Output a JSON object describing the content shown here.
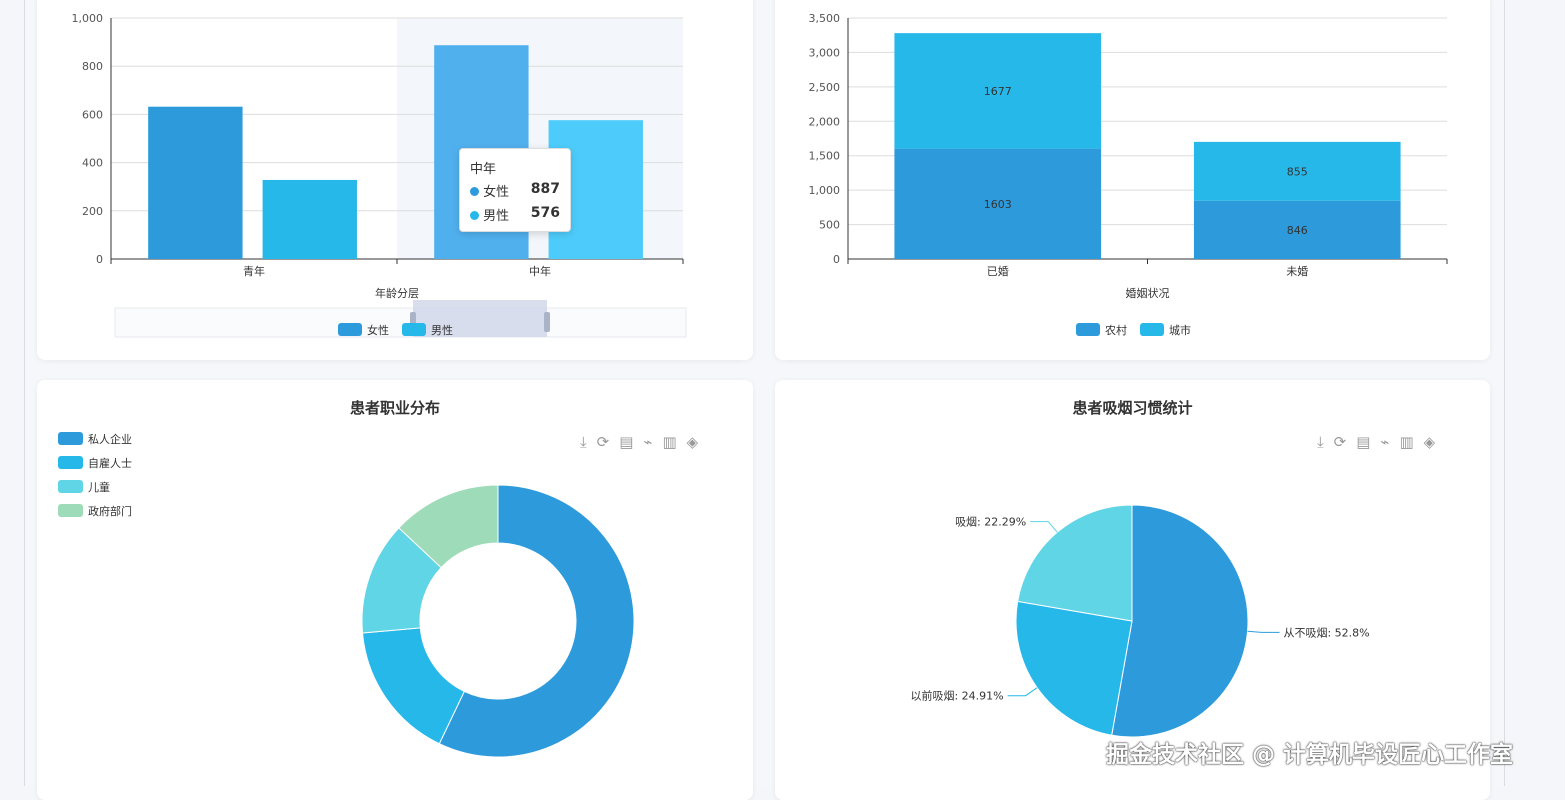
{
  "chart_data": [
    {
      "type": "bar",
      "xlabel": "年龄分层",
      "categories": [
        "青年",
        "中年"
      ],
      "ylim": [
        0,
        1000
      ],
      "yticks": [
        0,
        200,
        400,
        600,
        800,
        1000
      ],
      "grid": true,
      "legend_placement": "bottom",
      "series": [
        {
          "name": "女性",
          "values": [
            632,
            887
          ],
          "color": "#2d9bdb"
        },
        {
          "name": "男性",
          "values": [
            328,
            576
          ],
          "color": "#27b8ea"
        }
      ],
      "tooltip": {
        "title": "中年",
        "items": [
          {
            "name": "女性",
            "value": "887"
          },
          {
            "name": "男性",
            "value": "576"
          }
        ]
      }
    },
    {
      "type": "bar",
      "stacked": true,
      "xlabel": "婚姻状况",
      "categories": [
        "已婚",
        "未婚"
      ],
      "ylim": [
        0,
        3500
      ],
      "yticks": [
        0,
        500,
        1000,
        1500,
        2000,
        2500,
        3000,
        3500
      ],
      "grid": true,
      "legend_placement": "bottom",
      "series": [
        {
          "name": "农村",
          "values": [
            1603,
            846
          ],
          "color": "#2d9bdb"
        },
        {
          "name": "城市",
          "values": [
            1677,
            855
          ],
          "color": "#27b8ea"
        }
      ]
    },
    {
      "type": "pie",
      "title": "患者职业分布",
      "donut": true,
      "legend_placement": "top-left",
      "labels": [
        "私人企业",
        "自雇人士",
        "儿童",
        "政府部门"
      ],
      "values": [
        57.1,
        16.5,
        13.4,
        13.0
      ],
      "colors": [
        "#2d9bdb",
        "#27b8ea",
        "#5fd5e5",
        "#9edbb8"
      ]
    },
    {
      "type": "pie",
      "title": "患者吸烟习惯统计",
      "labels": [
        "从不吸烟",
        "以前吸烟",
        "吸烟"
      ],
      "values": [
        52.8,
        24.91,
        22.29
      ],
      "display_labels": [
        "从不吸烟: 52.8%",
        "以前吸烟: 24.91%",
        "吸烟: 22.29%"
      ],
      "colors": [
        "#2d9bdb",
        "#27b8ea",
        "#5fd5e5"
      ]
    }
  ],
  "toolbox": [
    "download-icon",
    "refresh-icon",
    "data-view-icon",
    "line-icon",
    "bar-icon",
    "stack-icon"
  ],
  "watermark": "掘金技术社区 @ 计算机毕设匠心工作室"
}
